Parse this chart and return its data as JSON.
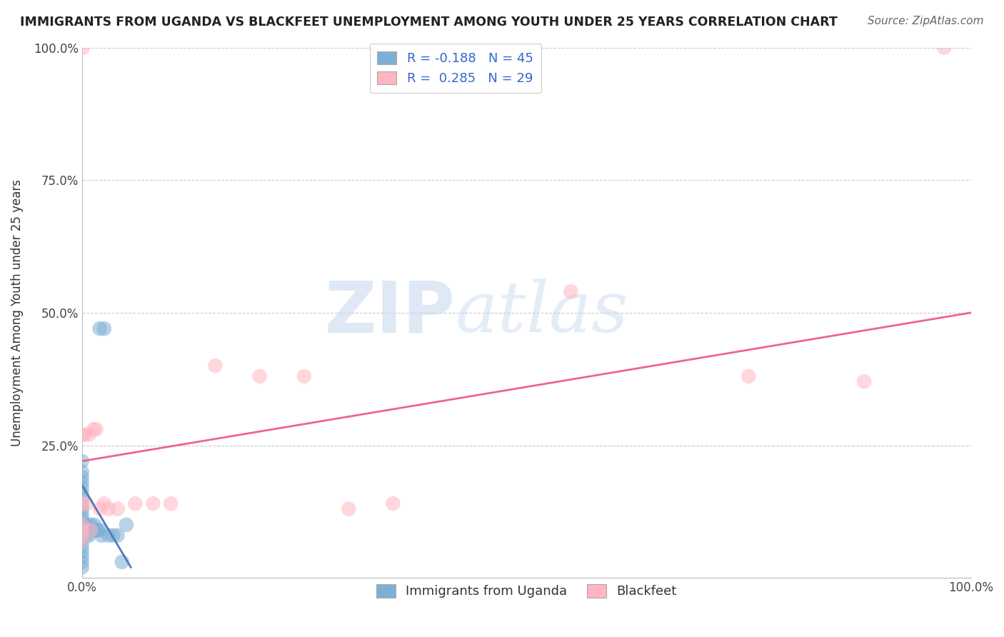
{
  "title": "IMMIGRANTS FROM UGANDA VS BLACKFEET UNEMPLOYMENT AMONG YOUTH UNDER 25 YEARS CORRELATION CHART",
  "source": "Source: ZipAtlas.com",
  "xlabel": "",
  "ylabel": "Unemployment Among Youth under 25 years",
  "xlim": [
    0.0,
    1.0
  ],
  "ylim": [
    0.0,
    1.0
  ],
  "x_ticks": [
    0.0,
    1.0
  ],
  "x_tick_labels": [
    "0.0%",
    "100.0%"
  ],
  "y_ticks": [
    0.0,
    0.25,
    0.5,
    0.75,
    1.0
  ],
  "y_tick_labels": [
    "",
    "25.0%",
    "50.0%",
    "75.0%",
    "100.0%"
  ],
  "color_blue": "#7EB0D5",
  "color_pink": "#FFB6C1",
  "line_blue": "#5577BB",
  "line_pink": "#EE6688",
  "background_color": "#FFFFFF",
  "watermark_zip": "ZIP",
  "watermark_atlas": "atlas",
  "blue_scatter_x": [
    0.0,
    0.0,
    0.0,
    0.0,
    0.0,
    0.0,
    0.0,
    0.0,
    0.0,
    0.0,
    0.0,
    0.0,
    0.0,
    0.0,
    0.0,
    0.0,
    0.0,
    0.0,
    0.0,
    0.0,
    0.0,
    0.0,
    0.002,
    0.003,
    0.004,
    0.005,
    0.006,
    0.007,
    0.008,
    0.009,
    0.01,
    0.01,
    0.012,
    0.014,
    0.016,
    0.018,
    0.02,
    0.022,
    0.025,
    0.02,
    0.03,
    0.035,
    0.04,
    0.045,
    0.05
  ],
  "blue_scatter_y": [
    0.02,
    0.03,
    0.04,
    0.05,
    0.06,
    0.07,
    0.07,
    0.08,
    0.09,
    0.1,
    0.1,
    0.11,
    0.12,
    0.13,
    0.14,
    0.15,
    0.16,
    0.17,
    0.18,
    0.19,
    0.2,
    0.22,
    0.1,
    0.09,
    0.09,
    0.08,
    0.1,
    0.09,
    0.08,
    0.09,
    0.09,
    0.1,
    0.09,
    0.1,
    0.09,
    0.09,
    0.09,
    0.08,
    0.47,
    0.47,
    0.08,
    0.08,
    0.08,
    0.03,
    0.1
  ],
  "pink_scatter_x": [
    0.0,
    0.0,
    0.0,
    0.0,
    0.0,
    0.0,
    0.001,
    0.003,
    0.005,
    0.008,
    0.01,
    0.013,
    0.016,
    0.02,
    0.025,
    0.03,
    0.04,
    0.06,
    0.08,
    0.1,
    0.15,
    0.2,
    0.25,
    0.3,
    0.35,
    0.55,
    0.75,
    0.88,
    0.97
  ],
  "pink_scatter_y": [
    0.07,
    0.08,
    0.09,
    0.1,
    0.14,
    0.27,
    1.0,
    0.27,
    0.14,
    0.27,
    0.09,
    0.28,
    0.28,
    0.13,
    0.14,
    0.13,
    0.13,
    0.14,
    0.14,
    0.14,
    0.4,
    0.38,
    0.38,
    0.13,
    0.14,
    0.54,
    0.38,
    0.37,
    1.0
  ],
  "blue_line_x": [
    0.0,
    0.055
  ],
  "blue_line_y_start": 0.175,
  "blue_line_y_end": 0.02,
  "pink_line_x": [
    0.0,
    1.0
  ],
  "pink_line_y_start": 0.22,
  "pink_line_y_end": 0.5
}
